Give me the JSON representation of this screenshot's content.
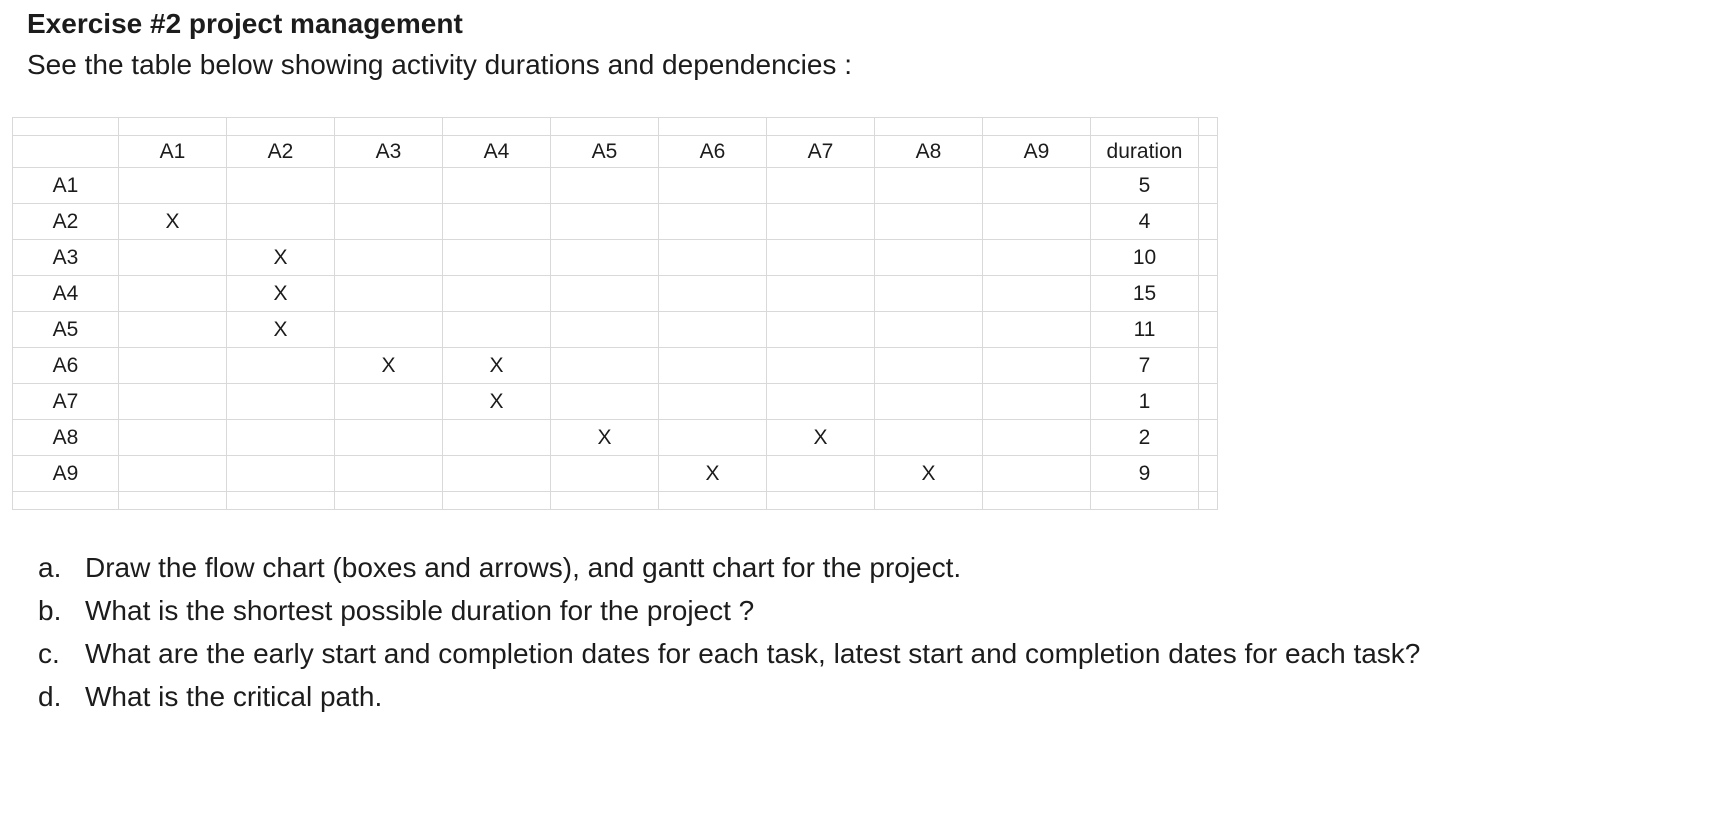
{
  "title": "Exercise #2 project management",
  "subtitle": "See the table below showing activity durations and dependencies :",
  "matrix": {
    "corner_label": "",
    "column_headers": [
      "A1",
      "A2",
      "A3",
      "A4",
      "A5",
      "A6",
      "A7",
      "A8",
      "A9",
      "duration"
    ],
    "dependency_mark": "X",
    "rows": [
      {
        "label": "A1",
        "depends_on": [],
        "duration": "5"
      },
      {
        "label": "A2",
        "depends_on": [
          "A1"
        ],
        "duration": "4"
      },
      {
        "label": "A3",
        "depends_on": [
          "A2"
        ],
        "duration": "10"
      },
      {
        "label": "A4",
        "depends_on": [
          "A2"
        ],
        "duration": "15"
      },
      {
        "label": "A5",
        "depends_on": [
          "A2"
        ],
        "duration": "11"
      },
      {
        "label": "A6",
        "depends_on": [
          "A3",
          "A4"
        ],
        "duration": "7"
      },
      {
        "label": "A7",
        "depends_on": [
          "A4"
        ],
        "duration": "1"
      },
      {
        "label": "A8",
        "depends_on": [
          "A5",
          "A7"
        ],
        "duration": "2"
      },
      {
        "label": "A9",
        "depends_on": [
          "A6",
          "A8"
        ],
        "duration": "9"
      }
    ]
  },
  "questions": [
    {
      "letter": "a.",
      "text": "Draw the flow chart (boxes and arrows), and gantt chart for the project."
    },
    {
      "letter": "b.",
      "text": "What is the shortest possible duration for the project ?"
    },
    {
      "letter": "c.",
      "text": "What are the early start and completion dates for each task, latest start and completion dates for each task?"
    },
    {
      "letter": "d.",
      "text": "What is the critical path."
    }
  ],
  "colors": {
    "header_fill": "#fcf1ce",
    "diagonal_fill": "#6e6a69",
    "gridline": "#d9d9d9",
    "text": "#1c1c1c"
  }
}
